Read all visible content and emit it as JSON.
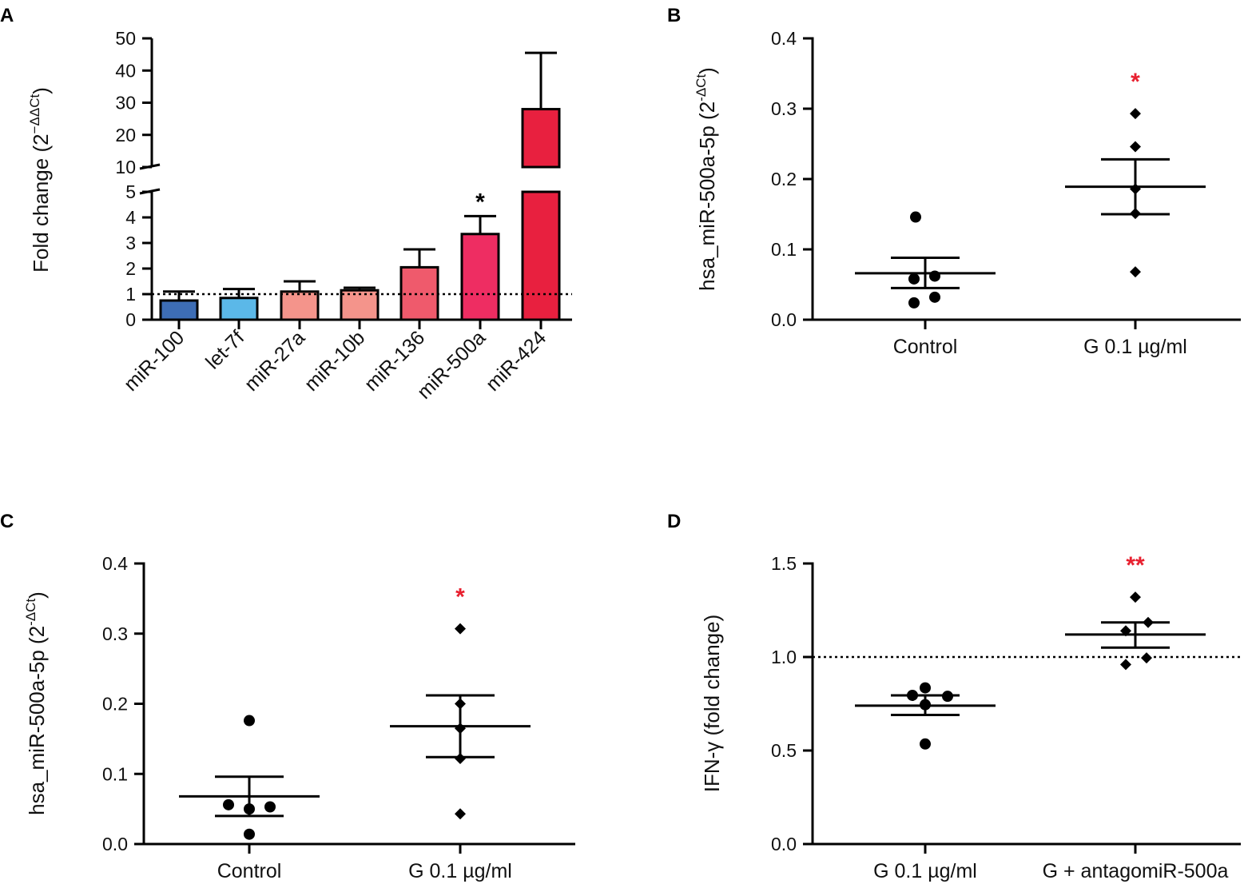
{
  "colors": {
    "axis": "#000000",
    "sig_red": "#e8202f",
    "sig_black": "#000000",
    "miR-100": "#3d6db5",
    "let-7f": "#5bb8e8",
    "miR-27a": "#f4948b",
    "miR-10b": "#f4948b",
    "miR-136": "#ef5a6c",
    "miR-500a": "#ee2d62",
    "miR-424": "#e8203f"
  },
  "chart_data": [
    {
      "panel": "A",
      "type": "bar",
      "title": "",
      "ylabel": "Fold change (2",
      "ylabel_sup": "−ΔΔCt",
      "ylabel_close": ")",
      "categories": [
        "miR-100",
        "let-7f",
        "miR-27a",
        "miR-10b",
        "miR-136",
        "miR-500a",
        "miR-424"
      ],
      "values": [
        0.75,
        0.85,
        1.1,
        1.15,
        2.05,
        3.35,
        28
      ],
      "errors": [
        0.35,
        0.35,
        0.4,
        0.1,
        0.7,
        0.7,
        17.5
      ],
      "significance": [
        "",
        "",
        "",
        "",
        "",
        "*",
        ""
      ],
      "reference_line": 1,
      "broken_axis": {
        "lower_ylim": [
          0,
          5
        ],
        "lower_ticks": [
          "0",
          "1",
          "2",
          "3",
          "4",
          "5"
        ],
        "upper_ylim": [
          10,
          50
        ],
        "upper_ticks": [
          "10",
          "20",
          "30",
          "40",
          "50"
        ]
      }
    },
    {
      "panel": "B",
      "type": "scatter",
      "ylabel": "hsa_miR-500a-5p (2",
      "ylabel_sup": "-ΔCt",
      "ylabel_close": ")",
      "ylim": [
        0,
        0.4
      ],
      "ticks": [
        "0.0",
        "0.1",
        "0.2",
        "0.3",
        "0.4"
      ],
      "groups": [
        {
          "name": "Control",
          "marker": "circle",
          "points": [
            0.146,
            0.062,
            0.058,
            0.032,
            0.024
          ],
          "mean": 0.066,
          "sem_low": 0.045,
          "sem_high": 0.088,
          "significance": ""
        },
        {
          "name": "G 0.1 µg/ml",
          "marker": "diamond",
          "points": [
            0.293,
            0.246,
            0.186,
            0.151,
            0.068
          ],
          "mean": 0.189,
          "sem_low": 0.15,
          "sem_high": 0.228,
          "significance": "*"
        }
      ]
    },
    {
      "panel": "C",
      "type": "scatter",
      "ylabel": "hsa_miR-500a-5p (2",
      "ylabel_sup": "-ΔCt",
      "ylabel_close": ")",
      "ylim": [
        0,
        0.4
      ],
      "ticks": [
        "0.0",
        "0.1",
        "0.2",
        "0.3",
        "0.4"
      ],
      "groups": [
        {
          "name": "Control",
          "marker": "circle",
          "points": [
            0.176,
            0.056,
            0.053,
            0.05,
            0.014
          ],
          "mean": 0.068,
          "sem_low": 0.04,
          "sem_high": 0.096,
          "significance": ""
        },
        {
          "name": "G 0.1 µg/ml",
          "marker": "diamond",
          "points": [
            0.307,
            0.2,
            0.165,
            0.122,
            0.043
          ],
          "mean": 0.168,
          "sem_low": 0.124,
          "sem_high": 0.212,
          "significance": "*"
        }
      ]
    },
    {
      "panel": "D",
      "type": "scatter",
      "ylabel": "IFN-γ (fold change)",
      "ylim": [
        0,
        1.5
      ],
      "ticks": [
        "0.0",
        "0.5",
        "1.0",
        "1.5"
      ],
      "reference_line": 1.0,
      "groups": [
        {
          "name": "G 0.1 µg/ml",
          "marker": "circle",
          "points": [
            0.835,
            0.795,
            0.79,
            0.745,
            0.535
          ],
          "mean": 0.74,
          "sem_low": 0.69,
          "sem_high": 0.795,
          "significance": ""
        },
        {
          "name": "G + antagomiR-500a",
          "marker": "diamond",
          "points": [
            1.32,
            1.185,
            1.14,
            0.995,
            0.96
          ],
          "mean": 1.12,
          "sem_low": 1.05,
          "sem_high": 1.185,
          "significance": "**"
        }
      ]
    }
  ]
}
